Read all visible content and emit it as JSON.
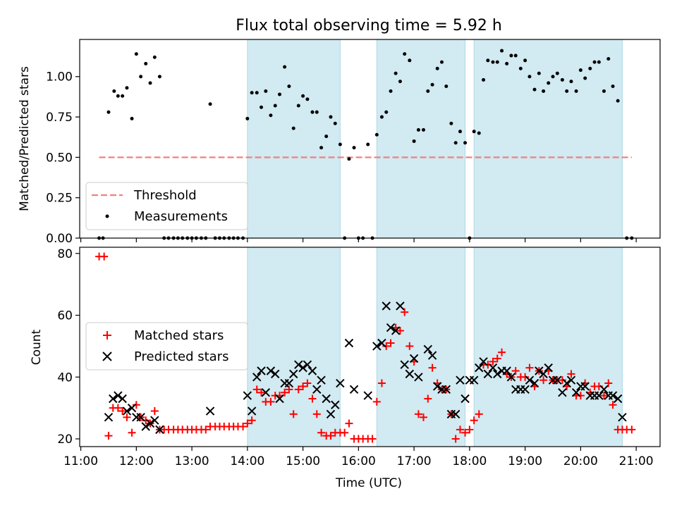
{
  "chart_data": {
    "title": "Flux total observing time = 5.92 h",
    "xlabel": "Time (UTC)",
    "xlim": [
      10.98,
      21.43
    ],
    "x_ticks": [
      {
        "v": 11,
        "label": "11:00"
      },
      {
        "v": 12,
        "label": "12:00"
      },
      {
        "v": 13,
        "label": "13:00"
      },
      {
        "v": 14,
        "label": "14:00"
      },
      {
        "v": 15,
        "label": "15:00"
      },
      {
        "v": 16,
        "label": "16:00"
      },
      {
        "v": 17,
        "label": "17:00"
      },
      {
        "v": 18,
        "label": "18:00"
      },
      {
        "v": 19,
        "label": "19:00"
      },
      {
        "v": 20,
        "label": "20:00"
      },
      {
        "v": 21,
        "label": "21:00"
      }
    ],
    "shaded_intervals": [
      [
        14.0,
        15.67
      ],
      [
        16.33,
        17.92
      ],
      [
        18.08,
        20.75
      ]
    ],
    "shade_color": "#add8e6",
    "colors": {
      "threshold": "#f08080",
      "measurements": "#000000",
      "matched": "#ff0000",
      "predicted": "#000000"
    },
    "top": {
      "type": "scatter",
      "ylabel": "Matched/Predicted stars",
      "ylim": [
        0,
        1.23
      ],
      "y_ticks": [
        {
          "v": 0,
          "label": "0.00"
        },
        {
          "v": 0.25,
          "label": "0.25"
        },
        {
          "v": 0.5,
          "label": "0.50"
        },
        {
          "v": 0.75,
          "label": "0.75"
        },
        {
          "v": 1.0,
          "label": "1.00"
        }
      ],
      "threshold": {
        "value": 0.5,
        "x": [
          11.33,
          20.92
        ],
        "label": "Threshold"
      },
      "legend": {
        "items": [
          "Threshold",
          "Measurements"
        ],
        "placement": "lower-left"
      },
      "measurements": [
        [
          11.33,
          0
        ],
        [
          11.4,
          0
        ],
        [
          11.5,
          0.78
        ],
        [
          11.6,
          0.91
        ],
        [
          11.67,
          0.88
        ],
        [
          11.75,
          0.88
        ],
        [
          11.83,
          0.93
        ],
        [
          11.92,
          0.74
        ],
        [
          12.0,
          1.14
        ],
        [
          12.08,
          1.0
        ],
        [
          12.17,
          1.08
        ],
        [
          12.25,
          0.96
        ],
        [
          12.33,
          1.12
        ],
        [
          12.42,
          1.0
        ],
        [
          12.5,
          0
        ],
        [
          12.58,
          0
        ],
        [
          12.67,
          0
        ],
        [
          12.75,
          0
        ],
        [
          12.83,
          0
        ],
        [
          12.92,
          0
        ],
        [
          13.0,
          0
        ],
        [
          13.08,
          0
        ],
        [
          13.17,
          0
        ],
        [
          13.25,
          0
        ],
        [
          13.33,
          0.83
        ],
        [
          13.42,
          0
        ],
        [
          13.5,
          0
        ],
        [
          13.58,
          0
        ],
        [
          13.67,
          0
        ],
        [
          13.75,
          0
        ],
        [
          13.83,
          0
        ],
        [
          13.92,
          0
        ],
        [
          14.0,
          0.74
        ],
        [
          14.08,
          0.9
        ],
        [
          14.17,
          0.9
        ],
        [
          14.25,
          0.81
        ],
        [
          14.33,
          0.91
        ],
        [
          14.42,
          0.76
        ],
        [
          14.5,
          0.82
        ],
        [
          14.58,
          0.89
        ],
        [
          14.67,
          1.06
        ],
        [
          14.75,
          0.94
        ],
        [
          14.83,
          0.68
        ],
        [
          14.92,
          0.82
        ],
        [
          15.0,
          0.88
        ],
        [
          15.08,
          0.86
        ],
        [
          15.17,
          0.78
        ],
        [
          15.25,
          0.78
        ],
        [
          15.33,
          0.56
        ],
        [
          15.42,
          0.63
        ],
        [
          15.5,
          0.75
        ],
        [
          15.58,
          0.71
        ],
        [
          15.67,
          0.58
        ],
        [
          15.75,
          0
        ],
        [
          15.83,
          0.49
        ],
        [
          15.92,
          0.56
        ],
        [
          16.0,
          0
        ],
        [
          16.08,
          0
        ],
        [
          16.17,
          0.58
        ],
        [
          16.25,
          0
        ],
        [
          16.33,
          0.64
        ],
        [
          16.42,
          0.75
        ],
        [
          16.5,
          0.78
        ],
        [
          16.58,
          0.91
        ],
        [
          16.67,
          1.02
        ],
        [
          16.75,
          0.97
        ],
        [
          16.83,
          1.14
        ],
        [
          16.92,
          1.1
        ],
        [
          17.0,
          0.6
        ],
        [
          17.08,
          0.67
        ],
        [
          17.17,
          0.67
        ],
        [
          17.25,
          0.91
        ],
        [
          17.33,
          0.95
        ],
        [
          17.42,
          1.05
        ],
        [
          17.5,
          1.09
        ],
        [
          17.58,
          0.94
        ],
        [
          17.67,
          0.71
        ],
        [
          17.75,
          0.59
        ],
        [
          17.83,
          0.66
        ],
        [
          17.92,
          0.59
        ],
        [
          18.0,
          0
        ],
        [
          18.08,
          0.66
        ],
        [
          18.17,
          0.65
        ],
        [
          18.25,
          0.98
        ],
        [
          18.33,
          1.1
        ],
        [
          18.42,
          1.09
        ],
        [
          18.5,
          1.09
        ],
        [
          18.58,
          1.16
        ],
        [
          18.67,
          1.08
        ],
        [
          18.75,
          1.13
        ],
        [
          18.83,
          1.13
        ],
        [
          18.92,
          1.05
        ],
        [
          19.0,
          1.1
        ],
        [
          19.08,
          1.0
        ],
        [
          19.17,
          0.92
        ],
        [
          19.25,
          1.02
        ],
        [
          19.33,
          0.91
        ],
        [
          19.42,
          0.96
        ],
        [
          19.5,
          1.0
        ],
        [
          19.58,
          1.02
        ],
        [
          19.67,
          0.98
        ],
        [
          19.75,
          0.91
        ],
        [
          19.83,
          0.97
        ],
        [
          19.92,
          0.91
        ],
        [
          20.0,
          1.04
        ],
        [
          20.08,
          0.99
        ],
        [
          20.17,
          1.05
        ],
        [
          20.25,
          1.09
        ],
        [
          20.33,
          1.09
        ],
        [
          20.42,
          0.91
        ],
        [
          20.5,
          1.11
        ],
        [
          20.58,
          0.94
        ],
        [
          20.67,
          0.85
        ],
        [
          20.83,
          0
        ],
        [
          20.92,
          0
        ]
      ]
    },
    "bottom": {
      "type": "scatter",
      "ylabel": "Count",
      "ylim": [
        17.5,
        82
      ],
      "y_ticks": [
        {
          "v": 20,
          "label": "20"
        },
        {
          "v": 40,
          "label": "40"
        },
        {
          "v": 60,
          "label": "60"
        },
        {
          "v": 80,
          "label": "80"
        }
      ],
      "legend": {
        "items": [
          "Matched stars",
          "Predicted stars"
        ],
        "placement": "center-left"
      },
      "matched": [
        [
          11.33,
          79
        ],
        [
          11.42,
          79
        ],
        [
          11.5,
          21
        ],
        [
          11.58,
          30
        ],
        [
          11.67,
          30
        ],
        [
          11.75,
          29
        ],
        [
          11.83,
          27
        ],
        [
          11.92,
          22
        ],
        [
          12.0,
          31
        ],
        [
          12.08,
          27
        ],
        [
          12.17,
          26
        ],
        [
          12.25,
          25
        ],
        [
          12.33,
          29
        ],
        [
          12.42,
          23
        ],
        [
          12.5,
          23
        ],
        [
          12.58,
          23
        ],
        [
          12.67,
          23
        ],
        [
          12.75,
          23
        ],
        [
          12.83,
          23
        ],
        [
          12.92,
          23
        ],
        [
          13.0,
          23
        ],
        [
          13.08,
          23
        ],
        [
          13.17,
          23
        ],
        [
          13.25,
          23
        ],
        [
          13.33,
          24
        ],
        [
          13.42,
          24
        ],
        [
          13.5,
          24
        ],
        [
          13.58,
          24
        ],
        [
          13.67,
          24
        ],
        [
          13.75,
          24
        ],
        [
          13.83,
          24
        ],
        [
          13.92,
          24
        ],
        [
          14.0,
          25
        ],
        [
          14.08,
          26
        ],
        [
          14.17,
          36
        ],
        [
          14.25,
          35
        ],
        [
          14.33,
          32
        ],
        [
          14.42,
          32
        ],
        [
          14.5,
          34
        ],
        [
          14.58,
          34
        ],
        [
          14.67,
          35
        ],
        [
          14.75,
          36
        ],
        [
          14.83,
          28
        ],
        [
          14.92,
          36
        ],
        [
          15.0,
          37
        ],
        [
          15.08,
          38
        ],
        [
          15.17,
          33
        ],
        [
          15.25,
          28
        ],
        [
          15.33,
          22
        ],
        [
          15.42,
          21
        ],
        [
          15.5,
          21
        ],
        [
          15.58,
          22
        ],
        [
          15.67,
          22
        ],
        [
          15.75,
          22
        ],
        [
          15.83,
          25
        ],
        [
          15.92,
          20
        ],
        [
          16.0,
          20
        ],
        [
          16.08,
          20
        ],
        [
          16.17,
          20
        ],
        [
          16.25,
          20
        ],
        [
          16.33,
          32
        ],
        [
          16.42,
          38
        ],
        [
          16.5,
          50
        ],
        [
          16.58,
          51
        ],
        [
          16.67,
          56
        ],
        [
          16.75,
          55
        ],
        [
          16.83,
          61
        ],
        [
          16.92,
          50
        ],
        [
          17.0,
          45
        ],
        [
          17.08,
          28
        ],
        [
          17.17,
          27
        ],
        [
          17.25,
          33
        ],
        [
          17.33,
          43
        ],
        [
          17.42,
          38
        ],
        [
          17.5,
          36
        ],
        [
          17.58,
          36
        ],
        [
          17.67,
          28
        ],
        [
          17.75,
          20
        ],
        [
          17.83,
          23
        ],
        [
          17.92,
          22
        ],
        [
          18.0,
          23
        ],
        [
          18.08,
          26
        ],
        [
          18.17,
          28
        ],
        [
          18.25,
          44
        ],
        [
          18.33,
          44
        ],
        [
          18.42,
          45
        ],
        [
          18.5,
          46
        ],
        [
          18.58,
          48
        ],
        [
          18.67,
          41
        ],
        [
          18.75,
          40
        ],
        [
          18.83,
          42
        ],
        [
          18.92,
          40
        ],
        [
          19.0,
          40
        ],
        [
          19.08,
          43
        ],
        [
          19.17,
          37
        ],
        [
          19.25,
          42
        ],
        [
          19.33,
          39
        ],
        [
          19.42,
          42
        ],
        [
          19.5,
          39
        ],
        [
          19.58,
          39
        ],
        [
          19.67,
          39
        ],
        [
          19.75,
          37
        ],
        [
          19.83,
          41
        ],
        [
          19.92,
          34
        ],
        [
          20.0,
          34
        ],
        [
          20.08,
          38
        ],
        [
          20.17,
          35
        ],
        [
          20.25,
          37
        ],
        [
          20.33,
          37
        ],
        [
          20.42,
          34
        ],
        [
          20.5,
          38
        ],
        [
          20.58,
          31
        ],
        [
          20.67,
          23
        ],
        [
          20.75,
          23
        ],
        [
          20.83,
          23
        ],
        [
          20.92,
          23
        ]
      ],
      "predicted": [
        [
          11.5,
          27
        ],
        [
          11.58,
          33
        ],
        [
          11.67,
          34
        ],
        [
          11.75,
          33
        ],
        [
          11.83,
          29
        ],
        [
          11.92,
          30
        ],
        [
          12.0,
          27
        ],
        [
          12.08,
          27
        ],
        [
          12.17,
          24
        ],
        [
          12.25,
          25
        ],
        [
          12.33,
          26
        ],
        [
          12.42,
          23
        ],
        [
          13.33,
          29
        ],
        [
          14.0,
          34
        ],
        [
          14.08,
          29
        ],
        [
          14.17,
          40
        ],
        [
          14.25,
          42
        ],
        [
          14.33,
          35
        ],
        [
          14.42,
          42
        ],
        [
          14.5,
          41
        ],
        [
          14.58,
          33
        ],
        [
          14.67,
          38
        ],
        [
          14.75,
          38
        ],
        [
          14.83,
          41
        ],
        [
          14.92,
          44
        ],
        [
          15.0,
          43
        ],
        [
          15.08,
          44
        ],
        [
          15.17,
          42
        ],
        [
          15.25,
          36
        ],
        [
          15.33,
          39
        ],
        [
          15.42,
          33
        ],
        [
          15.5,
          28
        ],
        [
          15.58,
          31
        ],
        [
          15.67,
          38
        ],
        [
          15.83,
          51
        ],
        [
          15.92,
          36
        ],
        [
          16.17,
          34
        ],
        [
          16.33,
          50
        ],
        [
          16.42,
          51
        ],
        [
          16.5,
          63
        ],
        [
          16.58,
          56
        ],
        [
          16.67,
          55
        ],
        [
          16.75,
          63
        ],
        [
          16.83,
          44
        ],
        [
          16.92,
          41
        ],
        [
          17.0,
          46
        ],
        [
          17.08,
          40
        ],
        [
          17.25,
          49
        ],
        [
          17.33,
          47
        ],
        [
          17.42,
          37
        ],
        [
          17.5,
          36
        ],
        [
          17.58,
          36
        ],
        [
          17.67,
          28
        ],
        [
          17.75,
          28
        ],
        [
          17.83,
          39
        ],
        [
          17.92,
          33
        ],
        [
          18.0,
          39
        ],
        [
          18.08,
          39
        ],
        [
          18.17,
          43
        ],
        [
          18.25,
          45
        ],
        [
          18.33,
          41
        ],
        [
          18.42,
          43
        ],
        [
          18.5,
          41
        ],
        [
          18.58,
          42
        ],
        [
          18.67,
          42
        ],
        [
          18.75,
          40
        ],
        [
          18.83,
          36
        ],
        [
          18.92,
          36
        ],
        [
          19.0,
          36
        ],
        [
          19.08,
          39
        ],
        [
          19.17,
          38
        ],
        [
          19.25,
          42
        ],
        [
          19.33,
          41
        ],
        [
          19.42,
          43
        ],
        [
          19.5,
          39
        ],
        [
          19.58,
          39
        ],
        [
          19.67,
          35
        ],
        [
          19.75,
          38
        ],
        [
          19.83,
          39
        ],
        [
          19.92,
          35
        ],
        [
          20.0,
          37
        ],
        [
          20.08,
          37
        ],
        [
          20.17,
          34
        ],
        [
          20.25,
          34
        ],
        [
          20.33,
          34
        ],
        [
          20.42,
          36
        ],
        [
          20.5,
          34
        ],
        [
          20.58,
          34
        ],
        [
          20.67,
          33
        ],
        [
          20.75,
          27
        ]
      ]
    }
  }
}
